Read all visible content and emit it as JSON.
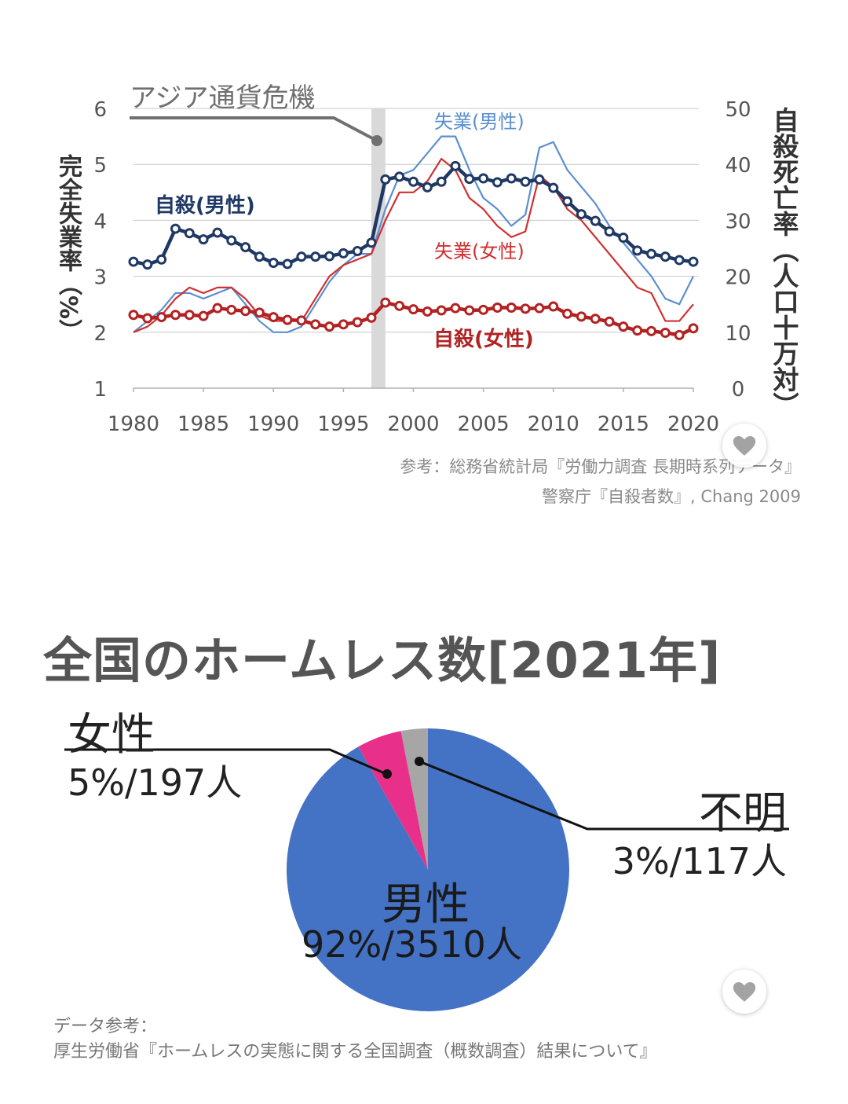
{
  "line_chart": {
    "annotation": "アジア通貨危機",
    "y_left_label": "完全失業率（%）",
    "y_right_label": "自殺死亡率（人口十万対）",
    "source_line1": "参考：総務省統計局『労働力調査 長期時系列データ』",
    "source_line2": "警察庁『自殺者数』, Chang 2009"
  },
  "pie_chart": {
    "title": "全国のホームレス数[2021年]",
    "female_name": "女性",
    "female_value": "5%/197人",
    "unknown_name": "不明",
    "unknown_value": "3%/117人",
    "male_name": "男性",
    "male_value": "92%/3510人",
    "source_line1": "データ参考：",
    "source_line2": "厚生労働省『ホームレスの実態に関する全国調査（概数調査）結果について』"
  },
  "chart_data": [
    {
      "type": "line",
      "x": [
        1980,
        1981,
        1982,
        1983,
        1984,
        1985,
        1986,
        1987,
        1988,
        1989,
        1990,
        1991,
        1992,
        1993,
        1994,
        1995,
        1996,
        1997,
        1998,
        1999,
        2000,
        2001,
        2002,
        2003,
        2004,
        2005,
        2006,
        2007,
        2008,
        2009,
        2010,
        2011,
        2012,
        2013,
        2014,
        2015,
        2016,
        2017,
        2018,
        2019,
        2020
      ],
      "xlim": [
        1980,
        2020
      ],
      "x_ticks": [
        1980,
        1985,
        1990,
        1995,
        2000,
        2005,
        2010,
        2015,
        2020
      ],
      "y_left": {
        "ylim": [
          1,
          6
        ],
        "ticks": [
          1,
          2,
          3,
          4,
          5,
          6
        ]
      },
      "y_right": {
        "ylim": [
          0,
          50
        ],
        "ticks": [
          0,
          10,
          20,
          30,
          40,
          50
        ]
      },
      "shaded_span": [
        1997,
        1998
      ],
      "grid": true,
      "series": [
        {
          "name": "失業(男性)",
          "axis": "left",
          "color": "#5b8fd0",
          "markers": false,
          "values": [
            2.0,
            2.2,
            2.4,
            2.7,
            2.7,
            2.6,
            2.7,
            2.8,
            2.5,
            2.2,
            2.0,
            2.0,
            2.1,
            2.5,
            2.9,
            3.2,
            3.4,
            3.4,
            4.2,
            4.8,
            4.9,
            5.2,
            5.5,
            5.5,
            4.9,
            4.4,
            4.2,
            3.9,
            4.1,
            5.3,
            5.4,
            4.9,
            4.6,
            4.3,
            3.9,
            3.6,
            3.3,
            3.0,
            2.6,
            2.5,
            3.0
          ]
        },
        {
          "name": "失業(女性)",
          "axis": "left",
          "color": "#d03030",
          "markers": false,
          "values": [
            2.0,
            2.1,
            2.3,
            2.6,
            2.8,
            2.7,
            2.8,
            2.8,
            2.6,
            2.3,
            2.2,
            2.2,
            2.2,
            2.6,
            3.0,
            3.2,
            3.3,
            3.4,
            4.0,
            4.5,
            4.5,
            4.7,
            5.1,
            4.9,
            4.4,
            4.2,
            3.9,
            3.7,
            3.8,
            4.8,
            4.6,
            4.2,
            4.0,
            3.7,
            3.4,
            3.1,
            2.8,
            2.7,
            2.2,
            2.2,
            2.5
          ]
        },
        {
          "name": "自殺(男性)",
          "label": "自殺(男性)",
          "axis": "right",
          "color": "#1f3864",
          "markers": true,
          "values": [
            22.6,
            22.1,
            23.0,
            28.5,
            27.7,
            26.6,
            27.8,
            26.4,
            25.2,
            23.5,
            22.4,
            22.2,
            23.5,
            23.5,
            23.6,
            24.1,
            24.5,
            26.0,
            37.3,
            37.8,
            36.9,
            35.9,
            36.9,
            39.7,
            37.4,
            37.5,
            36.8,
            37.5,
            36.9,
            37.3,
            35.8,
            33.4,
            31.1,
            29.9,
            28.0,
            26.9,
            24.6,
            24.0,
            23.5,
            22.9,
            22.6
          ]
        },
        {
          "name": "自殺(女性)",
          "label": "自殺(女性)",
          "axis": "right",
          "color": "#b22222",
          "markers": true,
          "values": [
            13.1,
            12.5,
            12.7,
            13.1,
            13.1,
            12.9,
            14.3,
            14.0,
            13.8,
            13.5,
            12.7,
            12.2,
            12.1,
            11.4,
            11.0,
            11.4,
            11.8,
            12.6,
            15.3,
            14.7,
            14.1,
            13.7,
            13.9,
            14.3,
            13.9,
            14.0,
            14.4,
            14.4,
            14.2,
            14.3,
            14.6,
            13.3,
            12.8,
            12.4,
            11.9,
            11.0,
            10.3,
            10.2,
            9.9,
            9.5,
            10.7
          ]
        }
      ]
    },
    {
      "type": "pie",
      "title": "全国のホームレス数[2021年]",
      "slices": [
        {
          "label": "男性",
          "value": 3510,
          "percent": 92,
          "color": "#4472c4"
        },
        {
          "label": "女性",
          "value": 197,
          "percent": 5,
          "color": "#e8308a"
        },
        {
          "label": "不明",
          "value": 117,
          "percent": 3,
          "color": "#a6a6a6"
        }
      ]
    }
  ]
}
